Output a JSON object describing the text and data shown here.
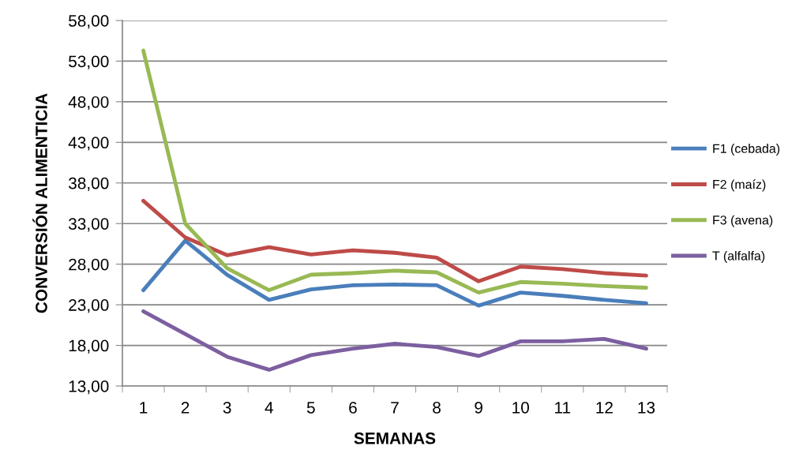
{
  "chart_data": {
    "type": "line",
    "xlabel": "SEMANAS",
    "ylabel": "CONVERSIÓN ALIMENTICIA",
    "categories": [
      "1",
      "2",
      "3",
      "4",
      "5",
      "6",
      "7",
      "8",
      "9",
      "10",
      "11",
      "12",
      "13"
    ],
    "series": [
      {
        "name": "F1 (cebada)",
        "color": "#4a7ebb",
        "values": [
          24.8,
          30.9,
          26.7,
          23.6,
          24.9,
          25.4,
          25.5,
          25.4,
          22.9,
          24.5,
          24.1,
          23.6,
          23.2
        ]
      },
      {
        "name": "F2 (maíz)",
        "color": "#be4b48",
        "values": [
          35.8,
          31.3,
          29.1,
          30.1,
          29.2,
          29.7,
          29.4,
          28.8,
          25.9,
          27.7,
          27.4,
          26.9,
          26.6
        ]
      },
      {
        "name": "F3 (avena)",
        "color": "#98b954",
        "values": [
          54.3,
          33.0,
          27.5,
          24.8,
          26.7,
          26.9,
          27.2,
          27.0,
          24.5,
          25.8,
          25.6,
          25.3,
          25.1
        ]
      },
      {
        "name": "T (alfalfa)",
        "color": "#7d5fa0",
        "values": [
          22.2,
          19.4,
          16.6,
          15.0,
          16.8,
          17.6,
          18.2,
          17.8,
          16.7,
          18.5,
          18.5,
          18.8,
          17.6
        ]
      }
    ],
    "ylim": [
      13,
      58
    ],
    "yticks": [
      {
        "value": 13,
        "label": "13,00"
      },
      {
        "value": 18,
        "label": "18,00"
      },
      {
        "value": 23,
        "label": "23,00"
      },
      {
        "value": 28,
        "label": "28,00"
      },
      {
        "value": 33,
        "label": "33,00"
      },
      {
        "value": 38,
        "label": "38,00"
      },
      {
        "value": 43,
        "label": "43,00"
      },
      {
        "value": 48,
        "label": "48,00"
      },
      {
        "value": 53,
        "label": "53,00"
      },
      {
        "value": 58,
        "label": "58,00"
      }
    ],
    "grid": "y",
    "legend": "right",
    "marker": "none",
    "line_style": "solid"
  }
}
